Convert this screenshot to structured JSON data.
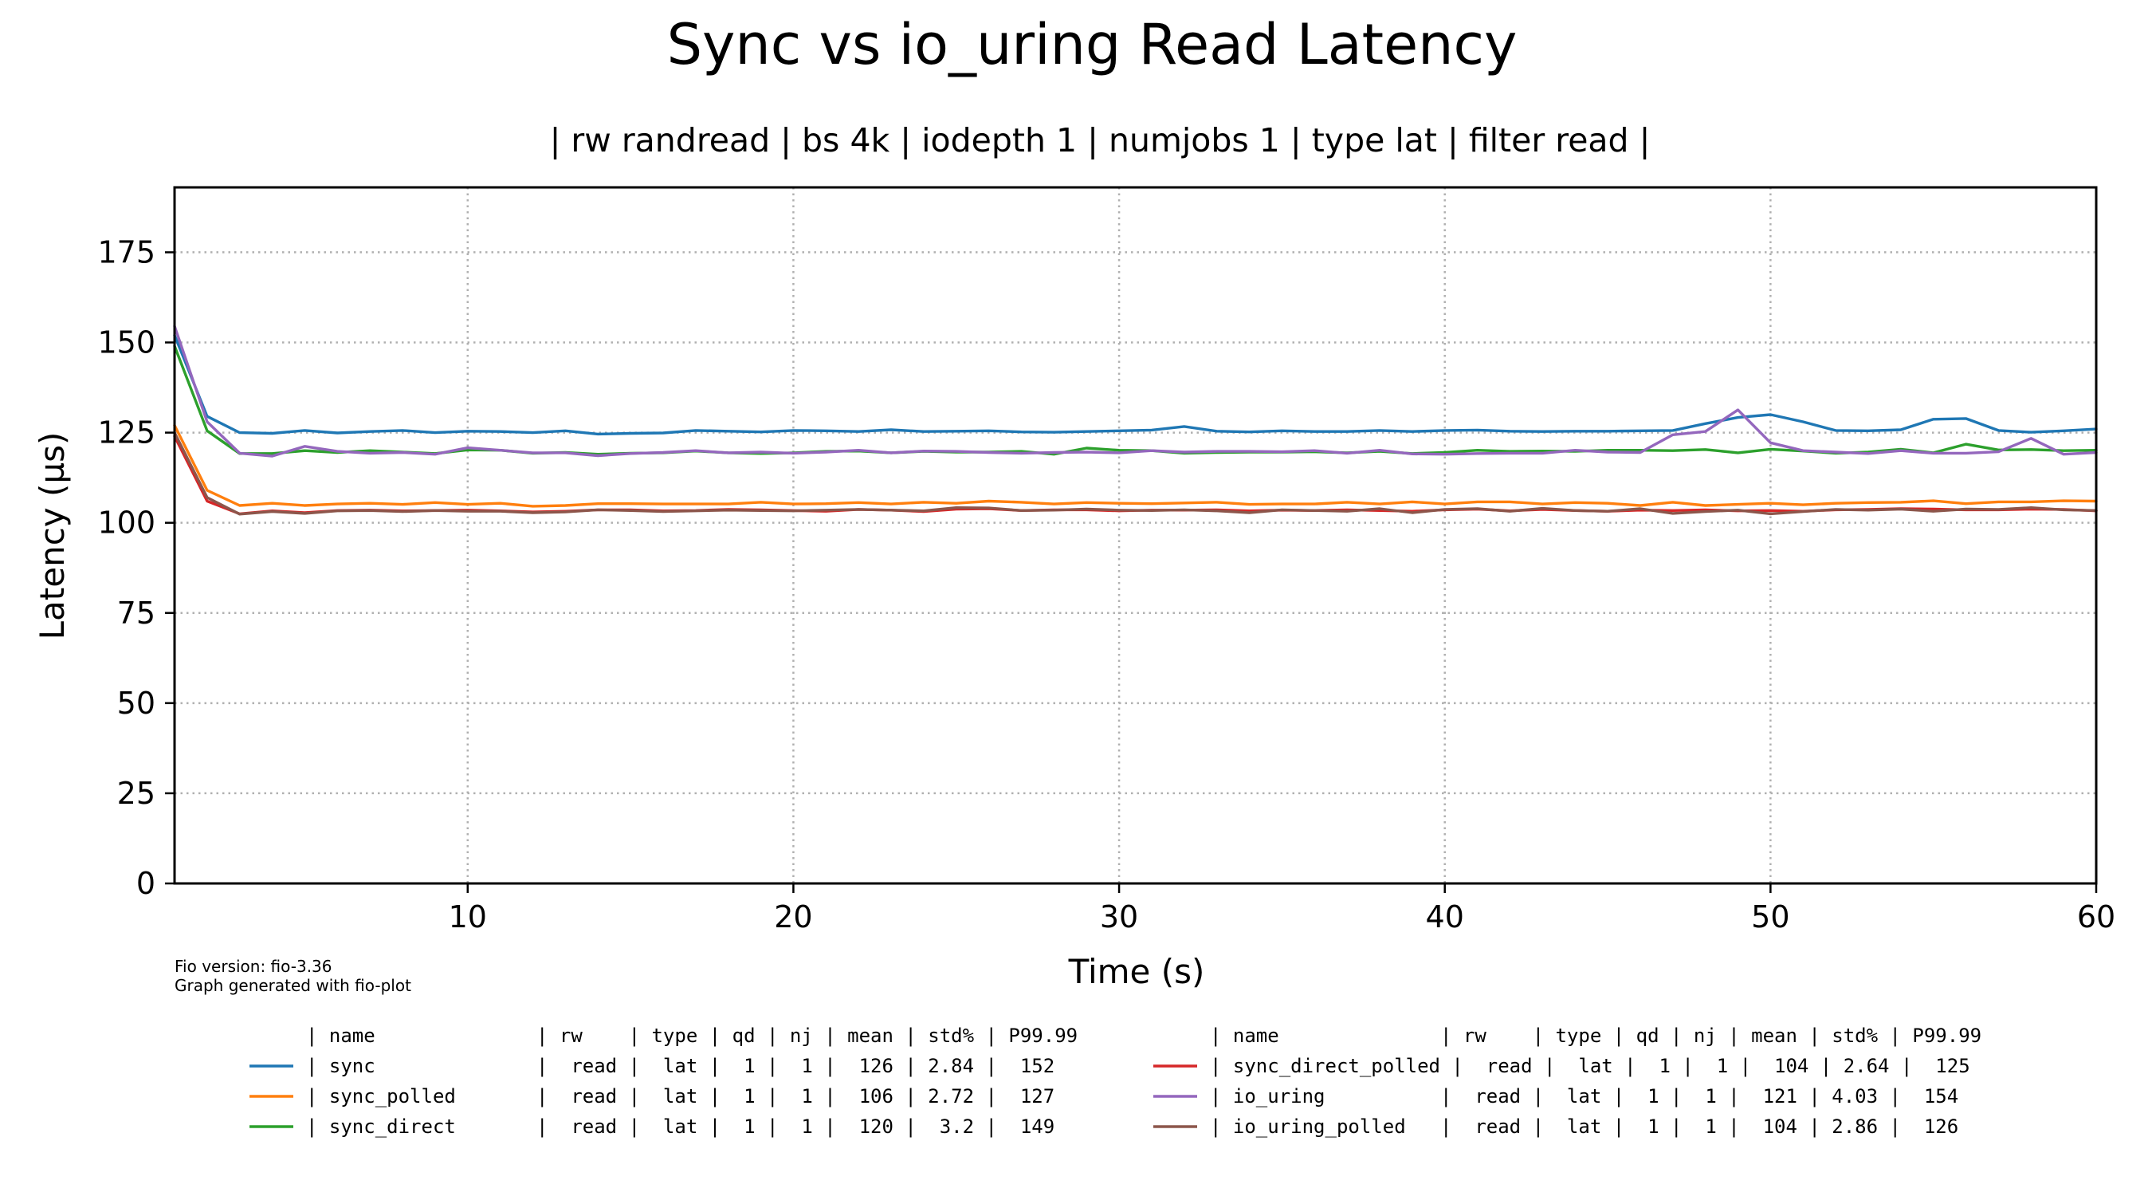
{
  "chart_data": {
    "type": "line",
    "title": "Sync vs io_uring Read Latency",
    "subtitle": "| rw randread | bs 4k | iodepth 1 | numjobs 1 | type lat | filter read |",
    "xlabel": "Time (s)",
    "ylabel": "Latency (µs)",
    "xlim": [
      1,
      60
    ],
    "ylim": [
      0,
      193
    ],
    "grid": true,
    "x_ticks": [
      10,
      20,
      30,
      40,
      50,
      60
    ],
    "y_ticks": [
      0,
      25,
      50,
      75,
      100,
      125,
      150,
      175
    ],
    "x": [
      1,
      2,
      3,
      4,
      5,
      6,
      7,
      8,
      9,
      10,
      11,
      12,
      13,
      14,
      15,
      16,
      17,
      18,
      19,
      20,
      21,
      22,
      23,
      24,
      25,
      26,
      27,
      28,
      29,
      30,
      31,
      32,
      33,
      34,
      35,
      36,
      37,
      38,
      39,
      40,
      41,
      42,
      43,
      44,
      45,
      46,
      47,
      48,
      49,
      50,
      51,
      52,
      53,
      54,
      55,
      56,
      57,
      58,
      59,
      60
    ],
    "series": [
      {
        "name": "sync",
        "color": "#1f77b4",
        "values": [
          152,
          129.5,
          125,
          124.8,
          125.6,
          124.9,
          125.3,
          125.6,
          125,
          125.4,
          125.3,
          125,
          125.5,
          124.6,
          124.8,
          124.9,
          125.6,
          125.4,
          125.2,
          125.6,
          125.5,
          125.3,
          125.8,
          125.3,
          125.4,
          125.5,
          125.2,
          125.1,
          125.3,
          125.5,
          125.7,
          126.7,
          125.4,
          125.2,
          125.5,
          125.3,
          125.3,
          125.6,
          125.3,
          125.6,
          125.7,
          125.4,
          125.3,
          125.4,
          125.4,
          125.5,
          125.6,
          127.5,
          129.2,
          130,
          128,
          125.6,
          125.5,
          125.8,
          128.7,
          128.9,
          125.6,
          125.1,
          125.5,
          126
        ]
      },
      {
        "name": "sync_polled",
        "color": "#ff7f0e",
        "values": [
          127,
          109,
          104.8,
          105.4,
          104.8,
          105.2,
          105.4,
          105.1,
          105.6,
          105.1,
          105.4,
          104.6,
          104.8,
          105.3,
          105.3,
          105.2,
          105.2,
          105.2,
          105.7,
          105.2,
          105.3,
          105.6,
          105.2,
          105.7,
          105.4,
          106,
          105.7,
          105.2,
          105.6,
          105.4,
          105.3,
          105.5,
          105.7,
          105.1,
          105.2,
          105.2,
          105.7,
          105.2,
          105.8,
          105.2,
          105.8,
          105.8,
          105.2,
          105.6,
          105.4,
          104.8,
          105.7,
          104.8,
          105.1,
          105.4,
          105,
          105.4,
          105.6,
          105.7,
          106.1,
          105.3,
          105.8,
          105.8,
          106.1,
          106
        ]
      },
      {
        "name": "sync_direct",
        "color": "#2ca02c",
        "values": [
          149,
          125.5,
          119.2,
          119.2,
          120,
          119.5,
          120,
          119.6,
          119.2,
          120.2,
          120.1,
          119.3,
          119.5,
          119,
          119.3,
          119.4,
          119.9,
          119.4,
          119.2,
          119.4,
          119.8,
          119.9,
          119.4,
          119.8,
          119.6,
          119.6,
          119.8,
          119,
          120.7,
          120.1,
          120,
          119.3,
          119.5,
          119.6,
          119.6,
          119.7,
          119.4,
          119.8,
          119.2,
          119.5,
          120.1,
          119.8,
          119.9,
          119.8,
          120.1,
          120.1,
          120,
          120.3,
          119.4,
          120.4,
          119.9,
          119.3,
          119.6,
          120.4,
          119.4,
          121.8,
          120.2,
          120.3,
          120,
          120.1
        ]
      },
      {
        "name": "sync_direct_polled",
        "color": "#d62728",
        "values": [
          124,
          106,
          102.5,
          103.3,
          102.8,
          103.4,
          103.5,
          103.3,
          103.4,
          103.5,
          103.3,
          103,
          103.2,
          103.6,
          103.6,
          103.3,
          103.4,
          103.7,
          103.6,
          103.4,
          103.2,
          103.7,
          103.5,
          103.1,
          103.8,
          103.9,
          103.4,
          103.6,
          103.6,
          103.3,
          103.5,
          103.5,
          103.6,
          103.3,
          103.5,
          103.4,
          103.6,
          103.4,
          103.2,
          103.6,
          103.8,
          103.3,
          103.7,
          103.4,
          103.2,
          103.5,
          103.4,
          103.6,
          103.3,
          103.4,
          103.2,
          103.6,
          103.7,
          103.9,
          103.8,
          103.6,
          103.6,
          103.8,
          103.7,
          103.3
        ]
      },
      {
        "name": "io_uring",
        "color": "#9467bd",
        "values": [
          154.5,
          128,
          119.3,
          118.5,
          121.2,
          119.8,
          119.3,
          119.5,
          119,
          120.8,
          120.1,
          119.4,
          119.4,
          118.6,
          119.2,
          119.5,
          120,
          119.4,
          119.6,
          119.3,
          119.6,
          120.1,
          119.4,
          119.9,
          119.8,
          119.5,
          119.3,
          119.5,
          119.6,
          119.4,
          120,
          119.6,
          119.8,
          119.8,
          119.7,
          120,
          119.3,
          120.1,
          119.1,
          119,
          119.2,
          119.3,
          119.3,
          120.1,
          119.6,
          119.5,
          124.4,
          125.3,
          131.3,
          122.2,
          120,
          119.6,
          119.2,
          120,
          119.3,
          119.3,
          119.7,
          123.4,
          119,
          119.5
        ]
      },
      {
        "name": "io_uring_polled",
        "color": "#8c564b",
        "values": [
          125,
          107,
          102.4,
          103.1,
          102.6,
          103.3,
          103.4,
          103.1,
          103.4,
          103.2,
          103.2,
          102.8,
          103,
          103.6,
          103.4,
          103.1,
          103.3,
          103.5,
          103.4,
          103.3,
          103.5,
          103.7,
          103.5,
          103.3,
          104.2,
          104.1,
          103.4,
          103.5,
          103.8,
          103.5,
          103.4,
          103.6,
          103.3,
          102.8,
          103.6,
          103.4,
          103.2,
          103.9,
          102.8,
          103.7,
          103.9,
          103.2,
          104,
          103.4,
          103.2,
          103.9,
          102.6,
          103.1,
          103.5,
          102.5,
          103.1,
          103.7,
          103.5,
          103.8,
          103.2,
          103.8,
          103.7,
          104.2,
          103.6,
          103.4
        ]
      }
    ]
  },
  "footnote": {
    "fio_version": "Fio version: fio-3.36",
    "generated_with": "Graph generated with fio-plot"
  },
  "legend": {
    "header_left": "| name              | rw    | type | qd | nj | mean | std% | P99.99",
    "header_right": "| name              | rw    | type | qd | nj | mean | std% | P99.99",
    "rows": [
      {
        "series": "sync",
        "text": "| sync              |  read |  lat |  1 |  1 |  126 | 2.84 |  152"
      },
      {
        "series": "sync_polled",
        "text": "| sync_polled       |  read |  lat |  1 |  1 |  106 | 2.72 |  127"
      },
      {
        "series": "sync_direct",
        "text": "| sync_direct       |  read |  lat |  1 |  1 |  120 |  3.2 |  149"
      },
      {
        "series": "sync_direct_polled",
        "text": "| sync_direct_polled |  read |  lat |  1 |  1 |  104 | 2.64 |  125"
      },
      {
        "series": "io_uring",
        "text": "| io_uring          |  read |  lat |  1 |  1 |  121 | 4.03 |  154"
      },
      {
        "series": "io_uring_polled",
        "text": "| io_uring_polled   |  read |  lat |  1 |  1 |  104 | 2.86 |  126"
      }
    ]
  }
}
